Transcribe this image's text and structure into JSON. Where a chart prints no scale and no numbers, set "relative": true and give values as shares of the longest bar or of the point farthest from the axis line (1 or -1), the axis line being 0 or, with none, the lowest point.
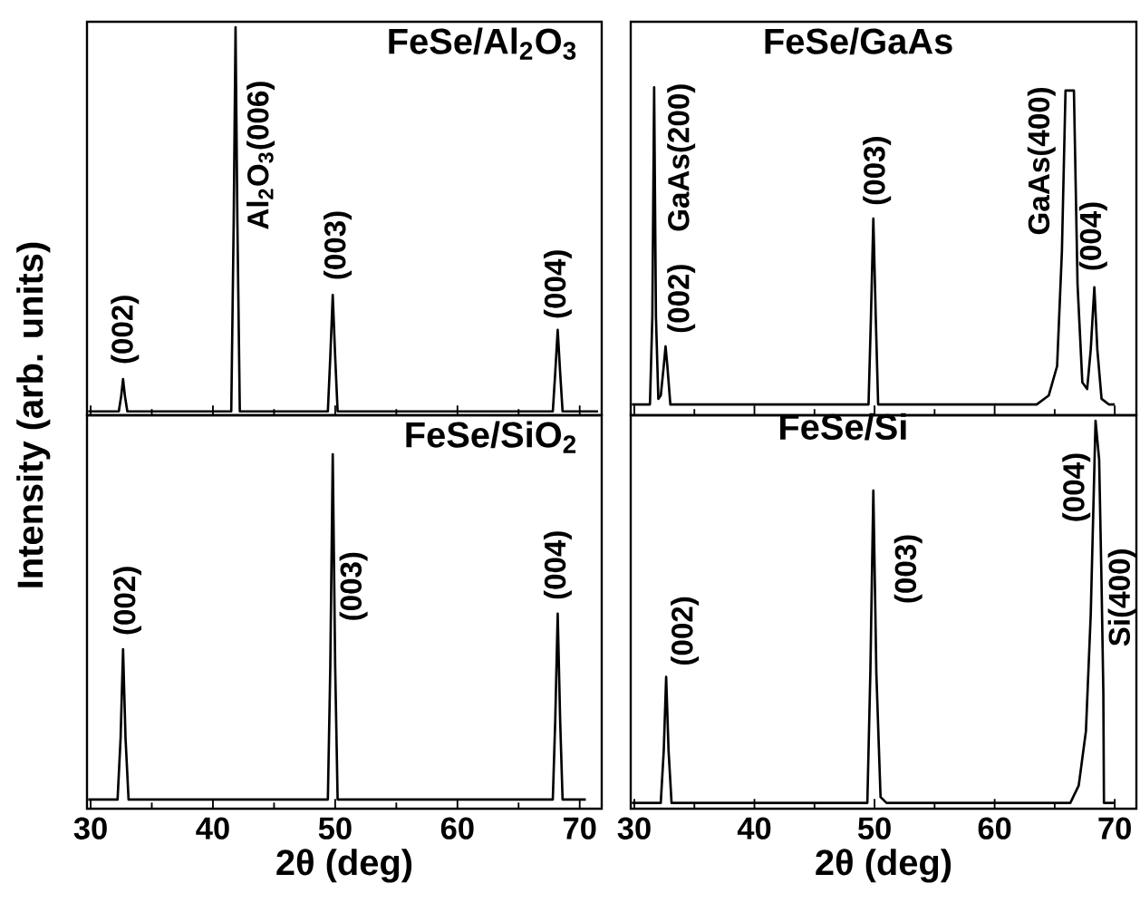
{
  "chart_data": [
    {
      "type": "line",
      "title": "FeSe/Al$_{2}$O$_{3}$",
      "ylabel": "Intensity (arb. units)",
      "relative": true,
      "xlim": [
        29.7,
        71.8
      ],
      "xticks": [
        30,
        40,
        50,
        60,
        70
      ],
      "tick_labels": false,
      "color": "#000000",
      "x": [
        29.8,
        32.3,
        32.5,
        32.65,
        32.8,
        33.0,
        41.5,
        41.7,
        41.85,
        42.0,
        42.2,
        49.4,
        49.6,
        49.8,
        50.0,
        50.2,
        67.8,
        68.0,
        68.2,
        68.4,
        68.6,
        71.5
      ],
      "values": [
        0.01,
        0.01,
        0.05,
        0.093,
        0.05,
        0.01,
        0.01,
        0.5,
        1.0,
        0.5,
        0.01,
        0.01,
        0.15,
        0.31,
        0.15,
        0.01,
        0.01,
        0.11,
        0.22,
        0.11,
        0.01,
        0.01
      ],
      "annotations": [
        {
          "text": "(002)",
          "x": 32.65,
          "y": 0.093
        },
        {
          "text": "Al$_{2}$O$_{3}$(006)",
          "x": 41.85,
          "y": 1.0
        },
        {
          "text": "(003)",
          "x": 49.8,
          "y": 0.31
        },
        {
          "text": "(004)",
          "x": 68.2,
          "y": 0.22
        }
      ]
    },
    {
      "type": "line",
      "title": "FeSe/GaAs",
      "relative": true,
      "xlim": [
        29.7,
        71.8
      ],
      "xticks": [
        30,
        40,
        50,
        60,
        70
      ],
      "tick_labels": false,
      "color": "#000000",
      "x": [
        29.8,
        31.3,
        31.5,
        31.65,
        31.8,
        32.0,
        32.2,
        32.45,
        32.6,
        32.75,
        33.0,
        49.5,
        49.7,
        49.9,
        50.1,
        50.3,
        63.5,
        64.5,
        65.2,
        65.6,
        65.9,
        66.6,
        66.9,
        67.3,
        67.7,
        68.0,
        68.3,
        68.55,
        68.9,
        69.5,
        70.0
      ],
      "values": [
        0.033,
        0.033,
        0.3,
        1.0,
        0.3,
        0.05,
        0.06,
        0.15,
        0.21,
        0.15,
        0.033,
        0.033,
        0.3,
        0.6,
        0.3,
        0.033,
        0.033,
        0.06,
        0.15,
        0.5,
        0.99,
        0.99,
        0.4,
        0.1,
        0.08,
        0.2,
        0.39,
        0.2,
        0.05,
        0.033,
        0.033
      ],
      "annotations": [
        {
          "text": "GaAs(200)",
          "x": 31.65,
          "y": 1.0
        },
        {
          "text": "(002)",
          "x": 32.6,
          "y": 0.21
        },
        {
          "text": "(003)",
          "x": 49.9,
          "y": 0.6
        },
        {
          "text": "GaAs(400)",
          "x": 65.9,
          "y": 0.99
        },
        {
          "text": "(004)",
          "x": 68.3,
          "y": 0.39
        }
      ]
    },
    {
      "type": "line",
      "title": "FeSe/SiO$_{2}$",
      "xlabel": "2θ (deg)",
      "relative": true,
      "xlim": [
        29.7,
        71.8
      ],
      "xticks": [
        30,
        40,
        50,
        60,
        70
      ],
      "tick_labels": "x",
      "color": "#000000",
      "x": [
        29.8,
        32.2,
        32.45,
        32.65,
        32.85,
        33.1,
        49.4,
        49.6,
        49.8,
        50.0,
        50.2,
        67.8,
        68.0,
        68.2,
        68.4,
        68.6,
        70.5
      ],
      "values": [
        0.026,
        0.026,
        0.2,
        0.45,
        0.2,
        0.026,
        0.026,
        0.4,
        1.0,
        0.4,
        0.026,
        0.026,
        0.25,
        0.55,
        0.25,
        0.026,
        0.026
      ],
      "annotations": [
        {
          "text": "(002)",
          "x": 32.65,
          "y": 0.45
        },
        {
          "text": "(003)",
          "x": 50.0,
          "y": 0.4
        },
        {
          "text": "(004)",
          "x": 68.2,
          "y": 0.55
        }
      ]
    },
    {
      "type": "line",
      "title": "FeSe/Si",
      "xlabel": "2θ (deg)",
      "relative": true,
      "xlim": [
        29.7,
        71.8
      ],
      "xticks": [
        30,
        40,
        50,
        60,
        70
      ],
      "tick_labels": "x",
      "color": "#000000",
      "x": [
        29.8,
        32.2,
        32.45,
        32.65,
        32.85,
        33.1,
        49.4,
        49.65,
        49.9,
        50.15,
        50.5,
        51.0,
        66.3,
        67.0,
        67.6,
        68.0,
        68.4,
        68.7,
        68.9,
        69.05,
        69.1,
        70.0
      ],
      "values": [
        0.015,
        0.015,
        0.15,
        0.34,
        0.15,
        0.015,
        0.015,
        0.35,
        0.82,
        0.35,
        0.03,
        0.015,
        0.015,
        0.06,
        0.2,
        0.5,
        1.0,
        0.9,
        0.58,
        0.3,
        0.015,
        0.015
      ],
      "annotations": [
        {
          "text": "(002)",
          "x": 32.65,
          "y": 0.34
        },
        {
          "text": "(003)",
          "x": 49.9,
          "y": 0.82
        },
        {
          "text": "(004)",
          "x": 68.4,
          "y": 1.0
        },
        {
          "text": "Si(400)",
          "x": 68.9,
          "y": 0.58
        }
      ]
    }
  ]
}
